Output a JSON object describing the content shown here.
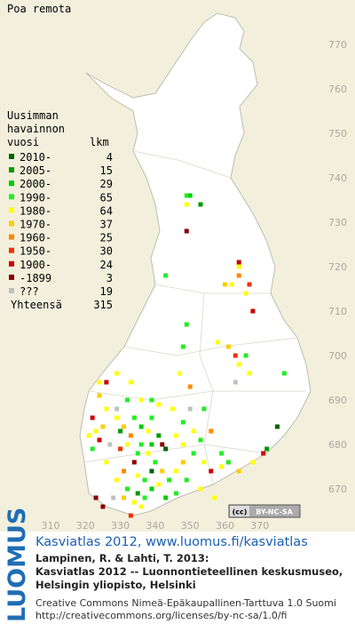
{
  "title": "Poa remota",
  "legend": {
    "heading": [
      "Uusimman",
      "havainnon",
      "vuosi"
    ],
    "count_heading": "lkm",
    "rows": [
      {
        "label": "2010-",
        "count": 4,
        "color": "#006400"
      },
      {
        "label": "2005-",
        "count": 15,
        "color": "#009900"
      },
      {
        "label": "2000-",
        "count": 29,
        "color": "#00cc00"
      },
      {
        "label": "1990-",
        "count": 65,
        "color": "#22ee22"
      },
      {
        "label": "1980-",
        "count": 64,
        "color": "#ffff00"
      },
      {
        "label": "1970-",
        "count": 37,
        "color": "#ffcc00"
      },
      {
        "label": "1960-",
        "count": 25,
        "color": "#ff8800"
      },
      {
        "label": "1950-",
        "count": 30,
        "color": "#ee3300"
      },
      {
        "label": "1900-",
        "count": 24,
        "color": "#cc0000"
      },
      {
        "label": "-1899",
        "count": 3,
        "color": "#880000"
      },
      {
        "label": "???",
        "count": 19,
        "color": "#c0c0c0"
      }
    ],
    "total_label": "Yhteensä",
    "total": 315
  },
  "xticks": [
    310,
    320,
    330,
    340,
    350,
    360,
    370
  ],
  "yticks": [
    670,
    680,
    690,
    700,
    710,
    720,
    730,
    740,
    750,
    760,
    770
  ],
  "squares": [
    [
      349,
      736,
      3
    ],
    [
      350,
      736,
      2
    ],
    [
      349,
      734,
      4
    ],
    [
      353,
      734,
      1
    ],
    [
      349,
      728,
      9
    ],
    [
      343,
      718,
      3
    ],
    [
      364,
      721,
      8
    ],
    [
      364,
      720,
      4
    ],
    [
      364,
      718,
      6
    ],
    [
      362,
      716,
      4
    ],
    [
      367,
      716,
      7
    ],
    [
      360,
      716,
      5
    ],
    [
      366,
      714,
      4
    ],
    [
      368,
      710,
      8
    ],
    [
      349,
      707,
      3
    ],
    [
      358,
      703,
      4
    ],
    [
      361,
      702,
      5
    ],
    [
      363,
      700,
      7
    ],
    [
      364,
      698,
      4
    ],
    [
      366,
      700,
      3
    ],
    [
      348,
      702,
      3
    ],
    [
      367,
      696,
      4
    ],
    [
      377,
      696,
      3
    ],
    [
      363,
      694,
      10
    ],
    [
      329,
      696,
      4
    ],
    [
      324,
      694,
      4
    ],
    [
      326,
      694,
      8
    ],
    [
      333,
      694,
      4
    ],
    [
      347,
      696,
      4
    ],
    [
      350,
      693,
      6
    ],
    [
      339,
      690,
      3
    ],
    [
      345,
      688,
      4
    ],
    [
      354,
      688,
      3
    ],
    [
      350,
      688,
      10
    ],
    [
      375,
      684,
      0
    ],
    [
      372,
      679,
      1
    ],
    [
      371,
      678,
      8
    ],
    [
      368,
      676,
      4
    ],
    [
      364,
      674,
      5
    ],
    [
      323,
      683,
      4
    ],
    [
      324,
      681,
      8
    ],
    [
      325,
      684,
      5
    ],
    [
      322,
      679,
      3
    ],
    [
      326,
      676,
      4
    ],
    [
      329,
      686,
      4
    ],
    [
      331,
      684,
      5
    ],
    [
      333,
      682,
      6
    ],
    [
      334,
      686,
      3
    ],
    [
      336,
      684,
      2
    ],
    [
      338,
      683,
      4
    ],
    [
      339,
      686,
      3
    ],
    [
      341,
      682,
      1
    ],
    [
      342,
      680,
      9
    ],
    [
      343,
      679,
      0
    ],
    [
      336,
      680,
      3
    ],
    [
      338,
      678,
      4
    ],
    [
      340,
      676,
      3
    ],
    [
      342,
      674,
      5
    ],
    [
      334,
      676,
      9
    ],
    [
      331,
      674,
      6
    ],
    [
      329,
      672,
      4
    ],
    [
      332,
      670,
      3
    ],
    [
      335,
      669,
      1
    ],
    [
      337,
      668,
      3
    ],
    [
      339,
      670,
      2
    ],
    [
      341,
      671,
      4
    ],
    [
      344,
      672,
      3
    ],
    [
      346,
      674,
      4
    ],
    [
      348,
      676,
      5
    ],
    [
      351,
      678,
      3
    ],
    [
      354,
      676,
      4
    ],
    [
      356,
      674,
      8
    ],
    [
      359,
      675,
      4
    ],
    [
      349,
      672,
      3
    ],
    [
      353,
      670,
      4
    ],
    [
      346,
      669,
      3
    ],
    [
      343,
      668,
      2
    ],
    [
      334,
      667,
      4
    ],
    [
      331,
      668,
      5
    ],
    [
      336,
      666,
      4
    ],
    [
      333,
      664,
      7
    ],
    [
      328,
      668,
      10
    ],
    [
      323,
      668,
      9
    ],
    [
      325,
      666,
      9
    ],
    [
      346,
      682,
      4
    ],
    [
      348,
      685,
      3
    ],
    [
      351,
      683,
      4
    ],
    [
      353,
      681,
      3
    ],
    [
      356,
      683,
      6
    ],
    [
      326,
      688,
      4
    ],
    [
      329,
      688,
      10
    ],
    [
      332,
      690,
      3
    ],
    [
      336,
      690,
      4
    ],
    [
      341,
      689,
      4
    ],
    [
      327,
      680,
      10
    ],
    [
      321,
      682,
      4
    ],
    [
      322,
      686,
      8
    ],
    [
      324,
      691,
      5
    ],
    [
      330,
      679,
      7
    ],
    [
      332,
      680,
      4
    ],
    [
      335,
      678,
      3
    ],
    [
      339,
      674,
      0
    ],
    [
      337,
      672,
      3
    ],
    [
      335,
      673,
      4
    ],
    [
      348,
      680,
      4
    ],
    [
      359,
      678,
      3
    ],
    [
      361,
      676,
      3
    ],
    [
      357,
      668,
      4
    ],
    [
      330,
      683,
      1
    ],
    [
      339,
      680,
      2
    ]
  ],
  "license_badge": [
    "(cc)",
    "BY-NC-SA"
  ],
  "logo": "LUOMUS",
  "site_link": "Kasviatlas 2012, www.luomus.fi/kasviatlas",
  "citation": [
    "Lampinen, R. & Lahti, T. 2013:",
    "Kasviatlas 2012 -- Luonnontieteellinen keskusmuseo,",
    "Helsingin yliopisto, Helsinki"
  ],
  "license": [
    "Creative Commons Nimeä-Epäkaupallinen-Tarttuva 1.0 Suomi",
    "http://creativecommons.org/licenses/by-nc-sa/1.0/fi"
  ]
}
